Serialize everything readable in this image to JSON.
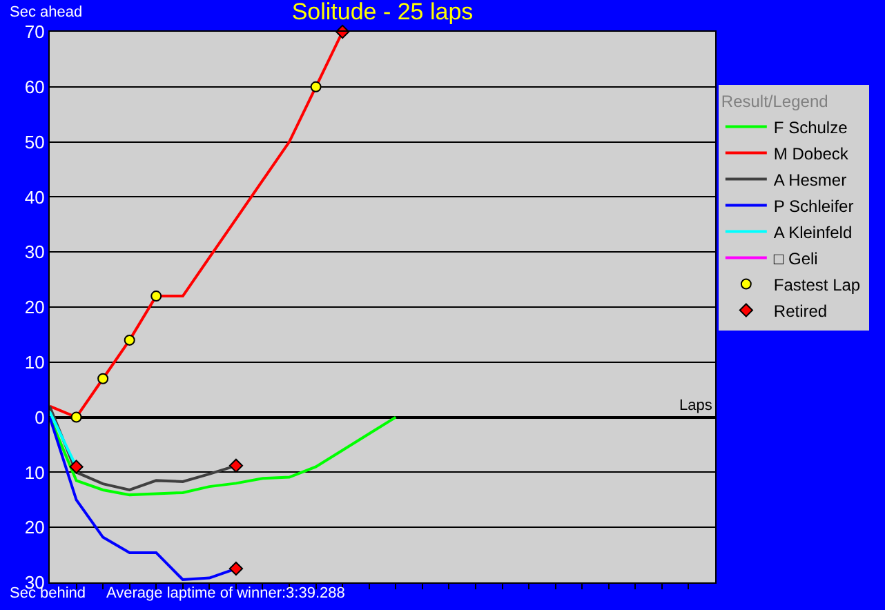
{
  "chart_data": {
    "type": "line",
    "title": "Solitude - 25 laps",
    "xlabel": "Laps",
    "legend_title": "Result/Legend",
    "annotations": [
      "Sec ahead",
      "Sec behind",
      "Average laptime of winner:3:39.288"
    ],
    "categories": [
      null,
      null,
      null,
      null,
      null,
      null,
      null,
      null,
      null,
      null,
      null,
      null,
      null,
      null,
      null,
      null,
      null,
      null,
      null,
      null,
      null,
      null,
      null,
      null,
      null,
      null
    ],
    "ylim": [
      -30,
      70
    ],
    "yticks": [
      {
        "value": -30,
        "label": "30"
      },
      {
        "value": -20,
        "label": "20"
      },
      {
        "value": -10,
        "label": "10"
      },
      0,
      10,
      20,
      30,
      40,
      50,
      60,
      70
    ],
    "tick_labels": "y",
    "grid": "y",
    "legend": "right",
    "marker": "none",
    "line_style": "solid",
    "series": [
      {
        "name": "F Schulze",
        "color": "#00ff00",
        "values": [
          0,
          -11.5,
          -13.2,
          -14.1,
          -13.9,
          -13.7,
          -12.6,
          -12,
          -11.1,
          -10.9,
          -9,
          -6,
          -3,
          0,
          null,
          null,
          null,
          null,
          null,
          null,
          null,
          null,
          null,
          null,
          null,
          null
        ]
      },
      {
        "name": "M Dobeck",
        "color": "#ff0000",
        "values": [
          2,
          0,
          7,
          14,
          22,
          22,
          29,
          36,
          43,
          50,
          60,
          70,
          null,
          null,
          null,
          null,
          null,
          null,
          null,
          null,
          null,
          null,
          null,
          null,
          null,
          null
        ]
      },
      {
        "name": "A Hesmer",
        "color": "#404040",
        "values": [
          2,
          -10,
          -12.1,
          -13.2,
          -11.5,
          -11.7,
          -10.3,
          -8.8,
          null,
          null,
          null,
          null,
          null,
          null,
          null,
          null,
          null,
          null,
          null,
          null,
          null,
          null,
          null,
          null,
          null,
          null
        ]
      },
      {
        "name": "P Schleifer",
        "color": "#0000ff",
        "values": [
          0,
          -15,
          -21.8,
          -24.6,
          -24.6,
          -29.5,
          -29.2,
          -27.5,
          null,
          null,
          null,
          null,
          null,
          null,
          null,
          null,
          null,
          null,
          null,
          null,
          null,
          null,
          null,
          null,
          null,
          null
        ]
      },
      {
        "name": "A Kleinfeld",
        "color": "#00ffff",
        "values": [
          1,
          -9,
          null,
          null,
          null,
          null,
          null,
          null,
          null,
          null,
          null,
          null,
          null,
          null,
          null,
          null,
          null,
          null,
          null,
          null,
          null,
          null,
          null,
          null,
          null,
          null
        ]
      },
      {
        "name": "□ Geli",
        "color": "#ff00ff",
        "values": [
          null,
          null,
          null,
          null,
          null,
          null,
          null,
          null,
          null,
          null,
          null,
          null,
          null,
          null,
          null,
          null,
          null,
          null,
          null,
          null,
          null,
          null,
          null,
          null,
          null,
          null
        ]
      },
      {
        "name": "Fastest Lap",
        "type": "scatter",
        "marker": "circle",
        "color": "#ffff00",
        "values": [
          null,
          0,
          7,
          14,
          22,
          null,
          null,
          null,
          null,
          null,
          60,
          null,
          null,
          null,
          null,
          null,
          null,
          null,
          null,
          null,
          null,
          null,
          null,
          null,
          null,
          null
        ]
      },
      {
        "name": "Retired",
        "type": "scatter",
        "marker": "diamond",
        "color": "#ff0000",
        "values": [
          null,
          -9,
          null,
          null,
          null,
          null,
          null,
          -8.8,
          null,
          null,
          null,
          70,
          null,
          null,
          null,
          null,
          null,
          null,
          null,
          null,
          null,
          null,
          null,
          null,
          null,
          null
        ]
      },
      {
        "type": "scatter",
        "marker": "diamond",
        "color": "#ff0000",
        "values": [
          null,
          null,
          null,
          null,
          null,
          null,
          null,
          -27.5,
          null,
          null,
          null,
          null,
          null,
          null,
          null,
          null,
          null,
          null,
          null,
          null,
          null,
          null,
          null,
          null,
          null,
          null
        ]
      }
    ]
  }
}
